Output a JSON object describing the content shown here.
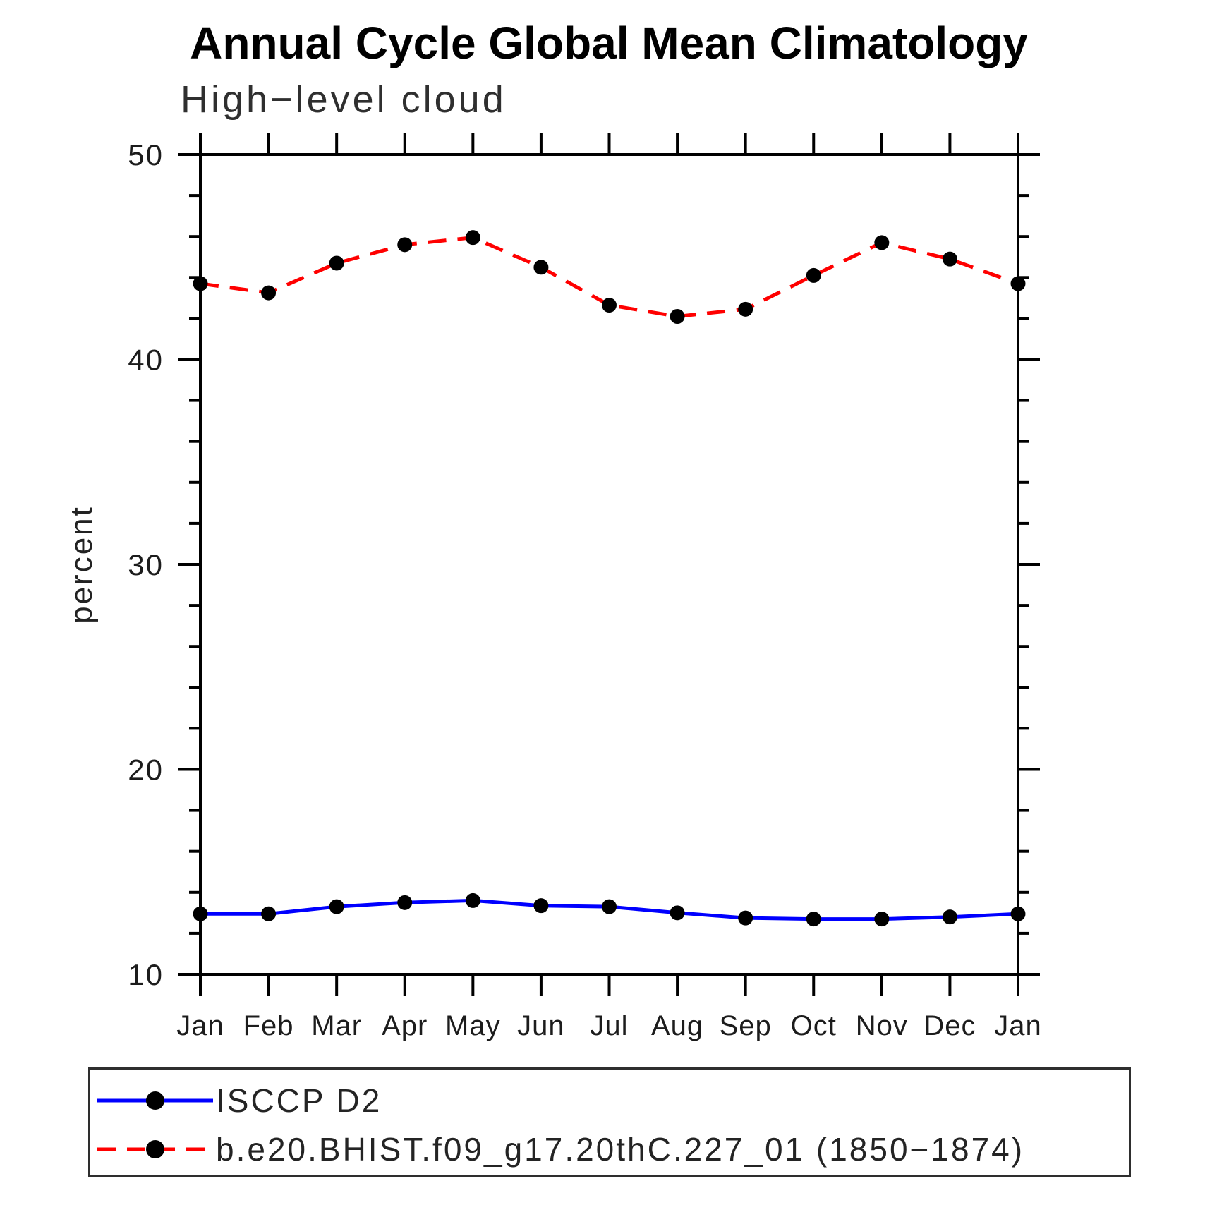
{
  "page": {
    "title": "Annual Cycle Global Mean Climatology",
    "subtitle": "High−level cloud"
  },
  "colors": {
    "obs_blue": "#0000ff",
    "model_red": "#ff0000",
    "marker": "#000000",
    "axis": "#000000"
  },
  "y_axis": {
    "label": "percent",
    "major_ticks": [
      50,
      40,
      30,
      20,
      10
    ],
    "minor_step": 2,
    "range": [
      10,
      50
    ]
  },
  "x_axis": {
    "labels": [
      "Jan",
      "Feb",
      "Mar",
      "Apr",
      "May",
      "Jun",
      "Jul",
      "Aug",
      "Sep",
      "Oct",
      "Nov",
      "Dec",
      "Jan"
    ]
  },
  "legend": {
    "items": [
      {
        "label": "ISCCP D2",
        "color": "#0000ff",
        "style": "solid"
      },
      {
        "label": "b.e20.BHIST.f09_g17.20thC.227_01 (1850−1874)",
        "color": "#ff0000",
        "style": "dashed"
      }
    ]
  },
  "chart_data": {
    "type": "line",
    "title": "Annual Cycle Global Mean Climatology",
    "subtitle": "High-level cloud",
    "xlabel": "",
    "ylabel": "percent",
    "ylim": [
      10,
      50
    ],
    "grid": false,
    "legend_position": "bottom-left-box",
    "x_categories": [
      "Jan",
      "Feb",
      "Mar",
      "Apr",
      "May",
      "Jun",
      "Jul",
      "Aug",
      "Sep",
      "Oct",
      "Nov",
      "Dec",
      "Jan"
    ],
    "series": [
      {
        "name": "ISCCP D2",
        "color": "#0000ff",
        "style": "solid",
        "marker": "filled-circle",
        "values": [
          12.95,
          12.95,
          13.3,
          13.5,
          13.6,
          13.35,
          13.3,
          13.0,
          12.75,
          12.7,
          12.7,
          12.8,
          12.95
        ]
      },
      {
        "name": "b.e20.BHIST.f09_g17.20thC.227_01 (1850-1874)",
        "color": "#ff0000",
        "style": "dashed",
        "marker": "filled-circle",
        "values": [
          43.7,
          43.25,
          44.7,
          45.6,
          45.95,
          44.5,
          42.65,
          42.1,
          42.45,
          44.1,
          45.7,
          44.9,
          43.7
        ]
      }
    ]
  }
}
